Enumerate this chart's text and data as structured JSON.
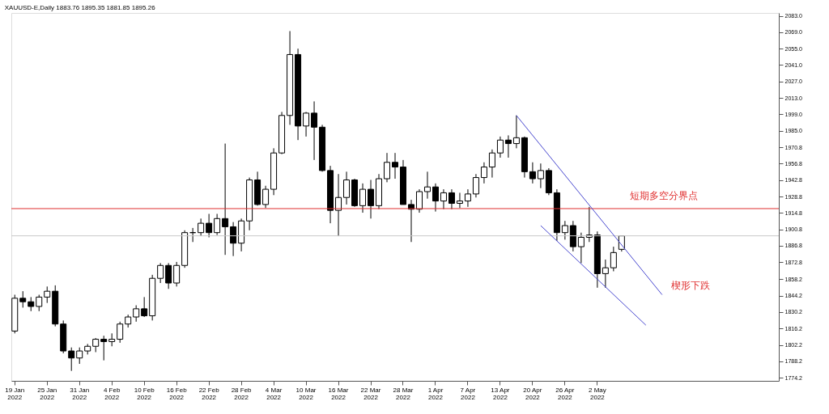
{
  "chart_data": {
    "type": "candlestick",
    "title": "XAUUSD-E,Daily  1883.76 1895.35 1881.85 1895.26",
    "categories": [
      "19 Jan 2022",
      null,
      null,
      null,
      "25 Jan 2022",
      null,
      null,
      null,
      "31 Jan 2022",
      null,
      null,
      null,
      "4 Feb 2022",
      null,
      null,
      null,
      "10 Feb 2022",
      null,
      null,
      null,
      "16 Feb 2022",
      null,
      null,
      null,
      "22 Feb 2022",
      null,
      null,
      null,
      "28 Feb 2022",
      null,
      null,
      null,
      "4 Mar 2022",
      null,
      null,
      null,
      "10 Mar 2022",
      null,
      null,
      null,
      "16 Mar 2022",
      null,
      null,
      null,
      "22 Mar 2022",
      null,
      null,
      null,
      "28 Mar 2022",
      null,
      null,
      null,
      "1 Apr 2022",
      null,
      null,
      null,
      "7 Apr 2022",
      null,
      null,
      null,
      "13 Apr 2022",
      null,
      null,
      null,
      "20 Apr 2022",
      null,
      null,
      null,
      "26 Apr 2022",
      null,
      null,
      null,
      "2 May 2022",
      null,
      null,
      null,
      null,
      null,
      null,
      null,
      null,
      null,
      null,
      null,
      null,
      null,
      null,
      null,
      null,
      null,
      null,
      null,
      null,
      null,
      null
    ],
    "ohlc": [
      [
        1814,
        1845,
        1812,
        1842
      ],
      [
        1842,
        1848,
        1834,
        1839
      ],
      [
        1839,
        1843,
        1831,
        1835
      ],
      [
        1835,
        1845,
        1831,
        1843
      ],
      [
        1843,
        1852,
        1838,
        1848
      ],
      [
        1848,
        1853,
        1818,
        1820
      ],
      [
        1820,
        1823,
        1795,
        1797
      ],
      [
        1797,
        1800,
        1780,
        1791
      ],
      [
        1791,
        1800,
        1786,
        1797
      ],
      [
        1797,
        1803,
        1794,
        1801
      ],
      [
        1801,
        1808,
        1796,
        1807
      ],
      [
        1807,
        1810,
        1789,
        1805
      ],
      [
        1805,
        1812,
        1801,
        1807
      ],
      [
        1807,
        1822,
        1804,
        1820
      ],
      [
        1820,
        1828,
        1817,
        1826
      ],
      [
        1826,
        1836,
        1822,
        1833
      ],
      [
        1833,
        1843,
        1826,
        1827
      ],
      [
        1827,
        1862,
        1823,
        1859
      ],
      [
        1859,
        1872,
        1855,
        1870
      ],
      [
        1870,
        1872,
        1850,
        1855
      ],
      [
        1855,
        1873,
        1852,
        1870
      ],
      [
        1870,
        1900,
        1868,
        1898
      ],
      [
        1898,
        1902,
        1890,
        1898
      ],
      [
        1898,
        1910,
        1895,
        1906
      ],
      [
        1906,
        1914,
        1894,
        1898
      ],
      [
        1898,
        1914,
        1896,
        1910
      ],
      [
        1910,
        1974,
        1879,
        1903
      ],
      [
        1903,
        1907,
        1878,
        1889
      ],
      [
        1889,
        1910,
        1882,
        1908
      ],
      [
        1908,
        1945,
        1900,
        1943
      ],
      [
        1943,
        1950,
        1921,
        1922
      ],
      [
        1922,
        1938,
        1919,
        1935
      ],
      [
        1935,
        1970,
        1930,
        1966
      ],
      [
        1966,
        2001,
        1965,
        1998
      ],
      [
        1998,
        2070,
        1990,
        2050
      ],
      [
        2050,
        2055,
        1977,
        1989
      ],
      [
        1989,
        2001,
        1980,
        2000
      ],
      [
        2000,
        2010,
        1960,
        1988
      ],
      [
        1988,
        1990,
        1950,
        1951
      ],
      [
        1951,
        1955,
        1906,
        1917
      ],
      [
        1917,
        1948,
        1895,
        1928
      ],
      [
        1928,
        1950,
        1922,
        1943
      ],
      [
        1943,
        1944,
        1920,
        1921
      ],
      [
        1921,
        1940,
        1915,
        1935
      ],
      [
        1935,
        1943,
        1910,
        1921
      ],
      [
        1921,
        1948,
        1918,
        1944
      ],
      [
        1944,
        1966,
        1941,
        1958
      ],
      [
        1958,
        1966,
        1944,
        1954
      ],
      [
        1954,
        1960,
        1922,
        1922
      ],
      [
        1922,
        1926,
        1890,
        1918
      ],
      [
        1918,
        1935,
        1915,
        1933
      ],
      [
        1933,
        1950,
        1927,
        1937
      ],
      [
        1937,
        1940,
        1916,
        1925
      ],
      [
        1925,
        1935,
        1918,
        1932
      ],
      [
        1932,
        1935,
        1918,
        1923
      ],
      [
        1923,
        1932,
        1919,
        1925
      ],
      [
        1925,
        1935,
        1920,
        1931
      ],
      [
        1931,
        1948,
        1928,
        1945
      ],
      [
        1945,
        1958,
        1940,
        1954
      ],
      [
        1954,
        1969,
        1945,
        1966
      ],
      [
        1966,
        1980,
        1962,
        1977
      ],
      [
        1977,
        1981,
        1962,
        1974
      ],
      [
        1974,
        1998,
        1970,
        1979
      ],
      [
        1979,
        1980,
        1945,
        1950
      ],
      [
        1950,
        1958,
        1940,
        1944
      ],
      [
        1944,
        1957,
        1936,
        1951
      ],
      [
        1951,
        1953,
        1930,
        1932
      ],
      [
        1932,
        1935,
        1891,
        1898
      ],
      [
        1898,
        1908,
        1892,
        1904
      ],
      [
        1904,
        1908,
        1882,
        1886
      ],
      [
        1886,
        1898,
        1872,
        1894
      ],
      [
        1894,
        1920,
        1890,
        1896
      ],
      [
        1896,
        1899,
        1851,
        1863
      ],
      [
        1863,
        1875,
        1851,
        1868
      ],
      [
        1868,
        1886,
        1865,
        1881
      ],
      [
        1883.76,
        1895.35,
        1881.85,
        1895.26
      ],
      null,
      null,
      null,
      null,
      null,
      null,
      null,
      null,
      null,
      null,
      null,
      null,
      null,
      null,
      null,
      null,
      null,
      null,
      null
    ],
    "color": "#000000",
    "series": [
      {
        "type": "line",
        "color": "#4a4ad0",
        "values": [
          null,
          null,
          null,
          null,
          null,
          null,
          null,
          null,
          null,
          null,
          null,
          null,
          null,
          null,
          null,
          null,
          null,
          null,
          null,
          null,
          null,
          null,
          null,
          null,
          null,
          null,
          null,
          null,
          null,
          null,
          null,
          null,
          null,
          null,
          null,
          null,
          null,
          null,
          null,
          null,
          null,
          null,
          null,
          null,
          null,
          null,
          null,
          null,
          null,
          null,
          null,
          null,
          null,
          null,
          null,
          null,
          null,
          null,
          null,
          null,
          null,
          null,
          1998,
          null,
          null,
          null,
          null,
          null,
          null,
          null,
          null,
          null,
          null,
          null,
          null,
          null,
          null,
          null,
          null,
          null,
          1845,
          null,
          null,
          null,
          null,
          null,
          null,
          null,
          null,
          null,
          null,
          null,
          null,
          null,
          null
        ]
      },
      {
        "type": "line",
        "color": "#4a4ad0",
        "values": [
          null,
          null,
          null,
          null,
          null,
          null,
          null,
          null,
          null,
          null,
          null,
          null,
          null,
          null,
          null,
          null,
          null,
          null,
          null,
          null,
          null,
          null,
          null,
          null,
          null,
          null,
          null,
          null,
          null,
          null,
          null,
          null,
          null,
          null,
          null,
          null,
          null,
          null,
          null,
          null,
          null,
          null,
          null,
          null,
          null,
          null,
          null,
          null,
          null,
          null,
          null,
          null,
          null,
          null,
          null,
          null,
          null,
          null,
          null,
          null,
          null,
          null,
          null,
          null,
          null,
          1904,
          null,
          null,
          null,
          null,
          null,
          null,
          null,
          null,
          null,
          null,
          null,
          null,
          1819,
          null,
          null,
          null,
          null,
          null,
          null,
          null,
          null,
          null,
          null,
          null,
          null,
          null,
          null,
          null,
          null
        ]
      }
    ],
    "ref_lines": [
      {
        "axis": "y",
        "value": 1918.5,
        "label": "短期多空分界点",
        "color": "#e03030"
      },
      {
        "axis": "y",
        "value": 1895.26,
        "color": "#c8c8c8"
      }
    ],
    "annotations": [
      "楔形下跌"
    ],
    "ylim": [
      1771.5,
      2085.5
    ],
    "yticks": [
      {
        "value": 2083.0,
        "label": "2083.0"
      },
      {
        "value": 2069.0,
        "label": "2069.0"
      },
      {
        "value": 2055.0,
        "label": "2055.0"
      },
      {
        "value": 2041.0,
        "label": "2041.0"
      },
      {
        "value": 2027.0,
        "label": "2027.0"
      },
      {
        "value": 2013.0,
        "label": "2013.0"
      },
      {
        "value": 1999.0,
        "label": "1999.0"
      },
      {
        "value": 1985.0,
        "label": "1985.0"
      },
      {
        "value": 1970.8,
        "label": "1970.8"
      },
      {
        "value": 1956.8,
        "label": "1956.8"
      },
      {
        "value": 1942.8,
        "label": "1942.8"
      },
      {
        "value": 1928.8,
        "label": "1928.8"
      },
      {
        "value": 1914.8,
        "label": "1914.8"
      },
      {
        "value": 1900.8,
        "label": "1900.8"
      },
      {
        "value": 1886.8,
        "label": "1886.8"
      },
      {
        "value": 1872.8,
        "label": "1872.8"
      },
      {
        "value": 1858.2,
        "label": "1858.2"
      },
      {
        "value": 1844.2,
        "label": "1844.2"
      },
      {
        "value": 1830.2,
        "label": "1830.2"
      },
      {
        "value": 1816.2,
        "label": "1816.2"
      },
      {
        "value": 1802.2,
        "label": "1802.2"
      },
      {
        "value": 1788.2,
        "label": "1788.2"
      },
      {
        "value": 1774.2,
        "label": "1774.2"
      }
    ],
    "grid": false
  }
}
